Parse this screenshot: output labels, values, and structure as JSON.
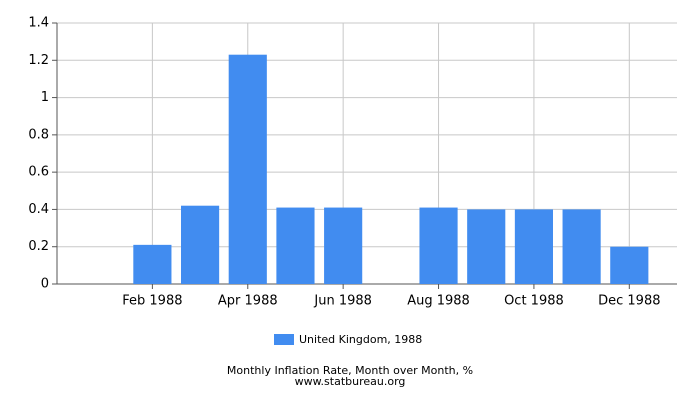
{
  "chart_data": {
    "type": "bar",
    "title": "Monthly Inflation Rate, Month over Month, %",
    "source": "www.statbureau.org",
    "categories": [
      null,
      "Feb 1988",
      null,
      "Apr 1988",
      null,
      "Jun 1988",
      null,
      "Aug 1988",
      null,
      "Oct 1988",
      null,
      "Dec 1988"
    ],
    "series": [
      {
        "name": "United Kingdom, 1988",
        "color": "#418cf0",
        "values": [
          0,
          0.21,
          0.42,
          1.23,
          0.41,
          0.41,
          0,
          0.41,
          0.4,
          0.4,
          0.4,
          0.2
        ]
      }
    ],
    "ylim": [
      0,
      1.4
    ],
    "yticks": [
      0,
      0.2,
      0.4,
      0.6,
      0.8,
      1,
      1.2,
      1.4
    ],
    "grid": true,
    "legend": "bottom"
  }
}
